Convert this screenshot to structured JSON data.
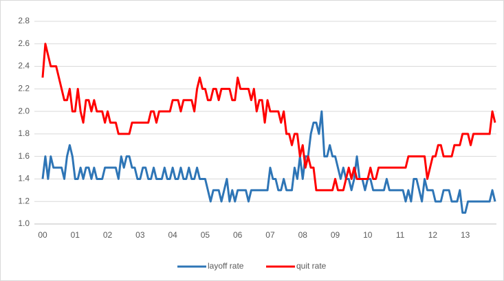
{
  "chart_data": {
    "type": "line",
    "categories": [
      "00",
      null,
      null,
      null,
      null,
      null,
      null,
      null,
      null,
      null,
      null,
      null,
      "01",
      null,
      null,
      null,
      null,
      null,
      null,
      null,
      null,
      null,
      null,
      null,
      "02",
      null,
      null,
      null,
      null,
      null,
      null,
      null,
      null,
      null,
      null,
      null,
      "03",
      null,
      null,
      null,
      null,
      null,
      null,
      null,
      null,
      null,
      null,
      null,
      "04",
      null,
      null,
      null,
      null,
      null,
      null,
      null,
      null,
      null,
      null,
      null,
      "05",
      null,
      null,
      null,
      null,
      null,
      null,
      null,
      null,
      null,
      null,
      null,
      "06",
      null,
      null,
      null,
      null,
      null,
      null,
      null,
      null,
      null,
      null,
      null,
      "07",
      null,
      null,
      null,
      null,
      null,
      null,
      null,
      null,
      null,
      null,
      null,
      "08",
      null,
      null,
      null,
      null,
      null,
      null,
      null,
      null,
      null,
      null,
      null,
      "09",
      null,
      null,
      null,
      null,
      null,
      null,
      null,
      null,
      null,
      null,
      null,
      "10",
      null,
      null,
      null,
      null,
      null,
      null,
      null,
      null,
      null,
      null,
      null,
      "11",
      null,
      null,
      null,
      null,
      null,
      null,
      null,
      null,
      null,
      null,
      null,
      "12",
      null,
      null,
      null,
      null,
      null,
      null,
      null,
      null,
      null,
      null,
      null,
      "13",
      null,
      null,
      null,
      null,
      null,
      null,
      null,
      null,
      null,
      null,
      null
    ],
    "series": [
      {
        "name": "layoff rate",
        "color": "#2e75b6",
        "values": [
          1.4,
          1.6,
          1.4,
          1.6,
          1.5,
          1.5,
          1.5,
          1.5,
          1.4,
          1.6,
          1.7,
          1.6,
          1.4,
          1.4,
          1.5,
          1.4,
          1.5,
          1.5,
          1.4,
          1.5,
          1.4,
          1.4,
          1.4,
          1.5,
          1.5,
          1.5,
          1.5,
          1.5,
          1.4,
          1.6,
          1.5,
          1.6,
          1.6,
          1.5,
          1.5,
          1.4,
          1.4,
          1.5,
          1.5,
          1.4,
          1.4,
          1.5,
          1.4,
          1.4,
          1.4,
          1.5,
          1.4,
          1.4,
          1.5,
          1.4,
          1.4,
          1.5,
          1.4,
          1.4,
          1.5,
          1.4,
          1.4,
          1.5,
          1.4,
          1.4,
          1.4,
          1.3,
          1.2,
          1.3,
          1.3,
          1.3,
          1.2,
          1.3,
          1.4,
          1.2,
          1.3,
          1.2,
          1.3,
          1.3,
          1.3,
          1.3,
          1.2,
          1.3,
          1.3,
          1.3,
          1.3,
          1.3,
          1.3,
          1.3,
          1.5,
          1.4,
          1.4,
          1.3,
          1.3,
          1.4,
          1.3,
          1.3,
          1.3,
          1.5,
          1.4,
          1.6,
          1.4,
          1.6,
          1.6,
          1.8,
          1.9,
          1.9,
          1.8,
          2.0,
          1.6,
          1.6,
          1.7,
          1.6,
          1.6,
          1.5,
          1.4,
          1.5,
          1.4,
          1.4,
          1.3,
          1.4,
          1.6,
          1.4,
          1.4,
          1.3,
          1.4,
          1.4,
          1.3,
          1.3,
          1.3,
          1.3,
          1.3,
          1.4,
          1.3,
          1.3,
          1.3,
          1.3,
          1.3,
          1.3,
          1.2,
          1.3,
          1.2,
          1.4,
          1.4,
          1.3,
          1.2,
          1.4,
          1.3,
          1.3,
          1.3,
          1.2,
          1.2,
          1.2,
          1.3,
          1.3,
          1.3,
          1.2,
          1.2,
          1.2,
          1.3,
          1.1,
          1.1,
          1.2,
          1.2,
          1.2,
          1.2,
          1.2,
          1.2,
          1.2,
          1.2,
          1.2,
          1.3,
          1.2
        ]
      },
      {
        "name": "quit rate",
        "color": "#ff0000",
        "values": [
          2.3,
          2.6,
          2.5,
          2.4,
          2.4,
          2.4,
          2.3,
          2.2,
          2.1,
          2.1,
          2.2,
          2.0,
          2.0,
          2.2,
          2.0,
          1.9,
          2.1,
          2.1,
          2.0,
          2.1,
          2.0,
          2.0,
          2.0,
          1.9,
          2.0,
          1.9,
          1.9,
          1.9,
          1.8,
          1.8,
          1.8,
          1.8,
          1.8,
          1.9,
          1.9,
          1.9,
          1.9,
          1.9,
          1.9,
          1.9,
          2.0,
          2.0,
          1.9,
          2.0,
          2.0,
          2.0,
          2.0,
          2.0,
          2.1,
          2.1,
          2.1,
          2.0,
          2.1,
          2.1,
          2.1,
          2.1,
          2.0,
          2.2,
          2.3,
          2.2,
          2.2,
          2.1,
          2.1,
          2.2,
          2.2,
          2.1,
          2.2,
          2.2,
          2.2,
          2.2,
          2.1,
          2.1,
          2.3,
          2.2,
          2.2,
          2.2,
          2.2,
          2.1,
          2.2,
          2.0,
          2.1,
          2.1,
          1.9,
          2.1,
          2.0,
          2.0,
          2.0,
          2.0,
          1.9,
          2.0,
          1.8,
          1.8,
          1.7,
          1.8,
          1.8,
          1.6,
          1.7,
          1.5,
          1.6,
          1.5,
          1.5,
          1.3,
          1.3,
          1.3,
          1.3,
          1.3,
          1.3,
          1.3,
          1.4,
          1.3,
          1.3,
          1.3,
          1.4,
          1.5,
          1.4,
          1.5,
          1.4,
          1.4,
          1.4,
          1.4,
          1.4,
          1.5,
          1.4,
          1.4,
          1.5,
          1.5,
          1.5,
          1.5,
          1.5,
          1.5,
          1.5,
          1.5,
          1.5,
          1.5,
          1.5,
          1.6,
          1.6,
          1.6,
          1.6,
          1.6,
          1.6,
          1.6,
          1.4,
          1.5,
          1.6,
          1.6,
          1.7,
          1.7,
          1.6,
          1.6,
          1.6,
          1.6,
          1.7,
          1.7,
          1.7,
          1.8,
          1.8,
          1.8,
          1.7,
          1.8,
          1.8,
          1.8,
          1.8,
          1.8,
          1.8,
          1.8,
          2.0,
          1.9
        ]
      }
    ],
    "ylim": [
      1.0,
      2.8
    ],
    "yticks": [
      {
        "value": 1.0,
        "label": "1.0"
      },
      1.2,
      1.4,
      1.6,
      1.8,
      {
        "value": 2.0,
        "label": "2.0"
      },
      2.2,
      2.4,
      2.6,
      2.8
    ],
    "grid": true
  }
}
